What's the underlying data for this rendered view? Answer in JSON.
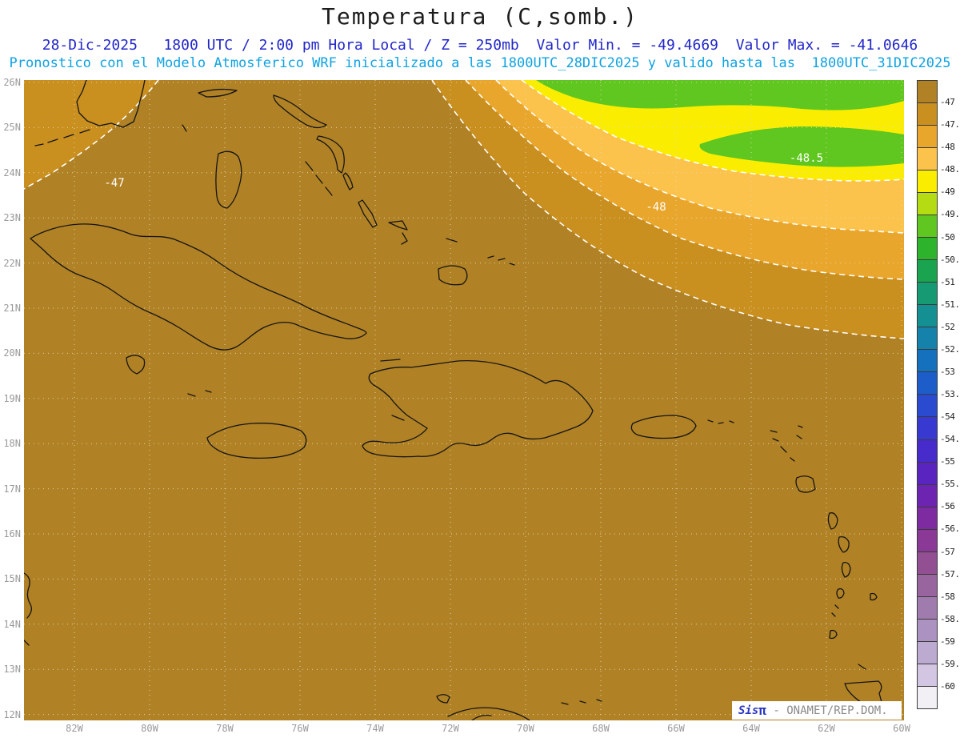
{
  "title": "Temperatura (C,somb.)",
  "header": {
    "line1": "28-Dic-2025   1800 UTC / 2:00 pm Hora Local / Z = 250mb  Valor Min. = -49.4669  Valor Max. = -41.0646",
    "line2": "Pronostico con el Modelo Atmosferico WRF inicializado a las 1800UTC_28DIC2025 y valido hasta las  1800UTC_31DIC2025"
  },
  "watermark": {
    "brand": "Sis",
    "pi": "π",
    "separator": " - ",
    "org": "ONAMET/REP.DOM."
  },
  "chart_data": {
    "type": "heatmap",
    "title": "Temperatura (C,somb.)",
    "variable": "Temperatura",
    "units": "C",
    "level": "250mb",
    "datetime": "28-Dic-2025 1800 UTC / 2:00 pm Hora Local",
    "model": "WRF",
    "init": "1800UTC_28DIC2025",
    "valid_until": "1800UTC_31DIC2025",
    "value_min": -49.4669,
    "value_max": -41.0646,
    "grid": true,
    "legend_position": "right",
    "lat_ticks": [
      "26N",
      "25N",
      "24N",
      "23N",
      "22N",
      "21N",
      "20N",
      "19N",
      "18N",
      "17N",
      "16N",
      "15N",
      "14N",
      "13N",
      "12N"
    ],
    "lon_ticks": [
      "82W",
      "80W",
      "78W",
      "76W",
      "74W",
      "72W",
      "70W",
      "68W",
      "66W",
      "64W",
      "62W",
      "60W"
    ],
    "contour_labels": [
      {
        "label": "-47"
      },
      {
        "label": "-48"
      },
      {
        "label": "-48.5"
      }
    ],
    "colorbar": {
      "levels": [
        "-47",
        "-47.5",
        "-48",
        "-48.5",
        "-49",
        "-49.5",
        "-50",
        "-50.5",
        "-51",
        "-51.5",
        "-52",
        "-52.5",
        "-53",
        "-53.5",
        "-54",
        "-54.5",
        "-55",
        "-55.5",
        "-56",
        "-56.5",
        "-57",
        "-57.5",
        "-58",
        "-58.5",
        "-59",
        "-59.5",
        "-60"
      ],
      "colors": [
        "#b08125",
        "#c98f1f",
        "#e9a62c",
        "#fbc34c",
        "#fbed00",
        "#b5dc12",
        "#5fc71f",
        "#2db32c",
        "#1ba44f",
        "#169a74",
        "#149092",
        "#1482aa",
        "#1570bd",
        "#1d5dc9",
        "#2a4ad0",
        "#3739d1",
        "#472bcb",
        "#5a24c0",
        "#6d24b1",
        "#7e2ba1",
        "#8a3a96",
        "#925093",
        "#98659e",
        "#a07bae",
        "#ab92c0",
        "#bcaad1",
        "#d2c6e2",
        "#f2f0f5"
      ]
    }
  }
}
